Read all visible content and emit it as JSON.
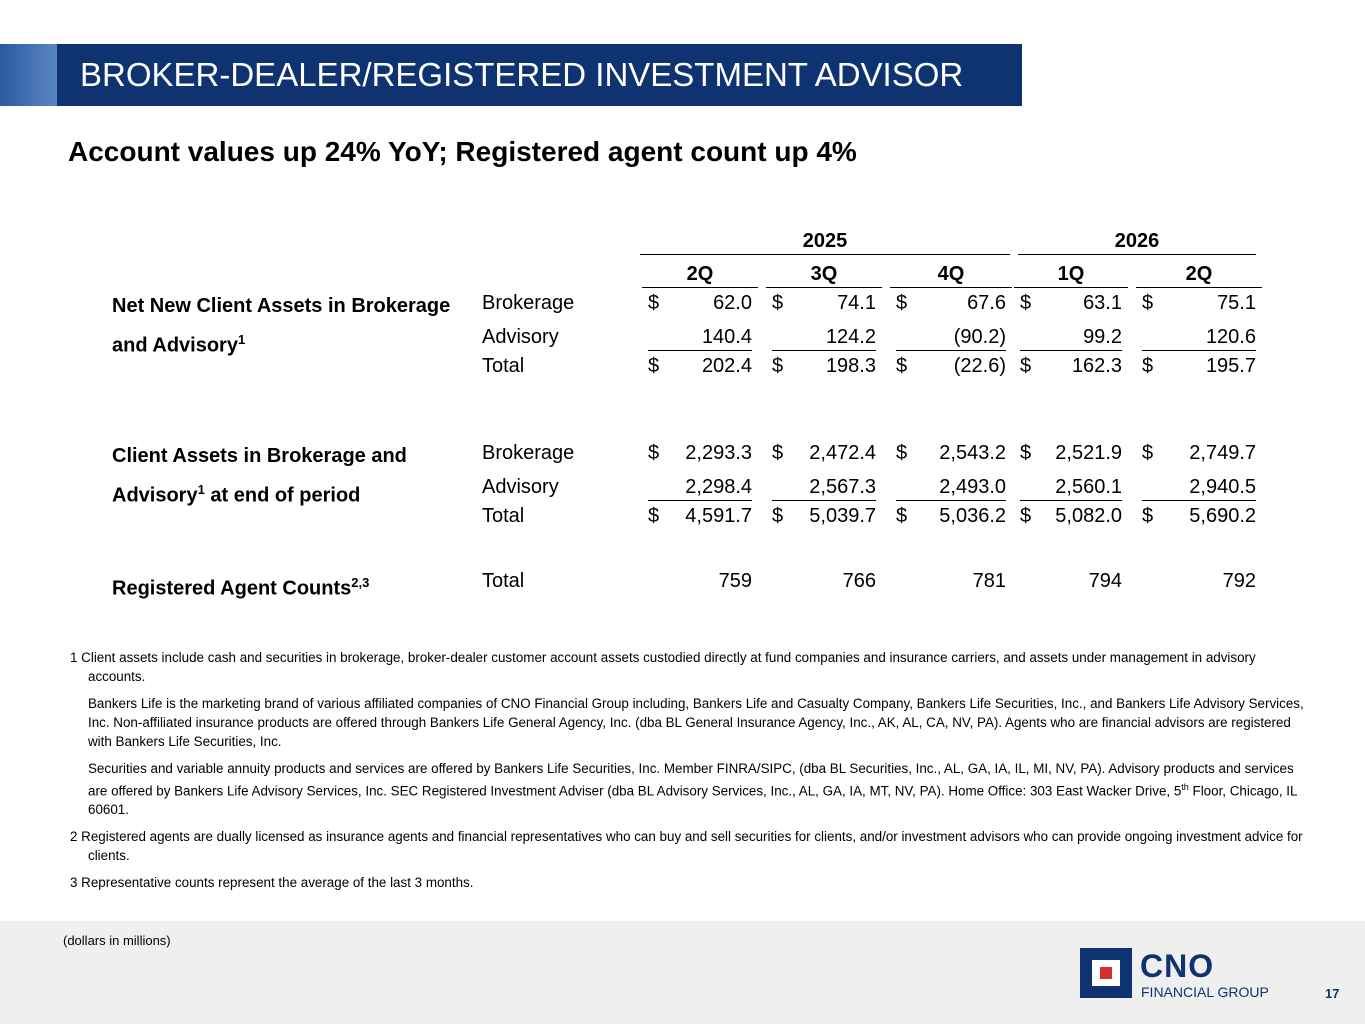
{
  "header": {
    "title": "BROKER-DEALER/REGISTERED INVESTMENT ADVISOR"
  },
  "subtitle": "Account values up 24% YoY; Registered agent count up 4%",
  "table": {
    "currency_symbol": "$",
    "years": [
      "2025",
      "2026"
    ],
    "quarters": [
      "2Q",
      "3Q",
      "4Q",
      "1Q",
      "2Q"
    ],
    "sections": [
      {
        "label": "Net New Client Assets in Brokerage and Advisory",
        "sup": "1",
        "rows": [
          {
            "label": "Brokerage",
            "dollar": true,
            "cells": [
              "62.0",
              "74.1",
              "67.6",
              "63.1",
              "75.1"
            ]
          },
          {
            "label": "Advisory",
            "dollar": false,
            "underline": true,
            "cells": [
              "140.4",
              "124.2",
              "(90.2)",
              "99.2",
              "120.6"
            ]
          },
          {
            "label": "Total",
            "dollar": true,
            "cells": [
              "202.4",
              "198.3",
              "(22.6)",
              "162.3",
              "195.7"
            ]
          }
        ]
      },
      {
        "label": "Client Assets in Brokerage and Advisory",
        "sup": "1",
        "label_tail": " at end of period",
        "rows": [
          {
            "label": "Brokerage",
            "dollar": true,
            "cells": [
              "2,293.3",
              "2,472.4",
              "2,543.2",
              "2,521.9",
              "2,749.7"
            ]
          },
          {
            "label": "Advisory",
            "dollar": false,
            "underline": true,
            "cells": [
              "2,298.4",
              "2,567.3",
              "2,493.0",
              "2,560.1",
              "2,940.5"
            ]
          },
          {
            "label": "Total",
            "dollar": true,
            "cells": [
              "4,591.7",
              "5,039.7",
              "5,036.2",
              "5,082.0",
              "5,690.2"
            ]
          }
        ]
      },
      {
        "label": "Registered Agent Counts",
        "sup": "2,3",
        "rows": [
          {
            "label": "Total",
            "dollar": false,
            "cells": [
              "759",
              "766",
              "781",
              "794",
              "792"
            ]
          }
        ]
      }
    ]
  },
  "footnotes": [
    {
      "text": "1 Client assets include cash and securities in brokerage, broker-dealer customer account assets custodied directly at fund companies and insurance carriers, and assets under management in advisory accounts."
    },
    {
      "indent": true,
      "text": "Bankers Life is the marketing brand of various affiliated companies of CNO Financial Group including, Bankers Life and Casualty Company, Bankers Life Securities, Inc., and Bankers Life Advisory Services, Inc. Non-affiliated insurance products are offered through Bankers Life General Agency, Inc. (dba BL General Insurance Agency, Inc., AK, AL, CA, NV, PA). Agents who are financial advisors are registered with Bankers Life Securities, Inc."
    },
    {
      "indent": true,
      "text": "Securities and variable annuity products and services are offered by Bankers Life Securities, Inc. Member FINRA/SIPC, (dba BL Securities, Inc., AL, GA, IA, IL, MI, NV, PA). Advisory products and services are offered by Bankers Life Advisory Services, Inc. SEC Registered Investment Adviser (dba BL Advisory Services, Inc., AL, GA, IA, MT, NV, PA). Home Office: 303 East Wacker Drive, 5",
      "sup": "th",
      "tail": " Floor, Chicago, IL 60601."
    },
    {
      "text": "2  Registered agents are dually licensed as insurance agents and financial representatives who can buy and sell securities for clients, and/or investment advisors who can provide ongoing investment advice for clients."
    },
    {
      "text": "3  Representative counts represent the average of the last 3 months."
    }
  ],
  "footer": {
    "units": "(dollars in millions)",
    "logo": "CNO",
    "logo_sub": "FINANCIAL GROUP",
    "page": "17"
  }
}
